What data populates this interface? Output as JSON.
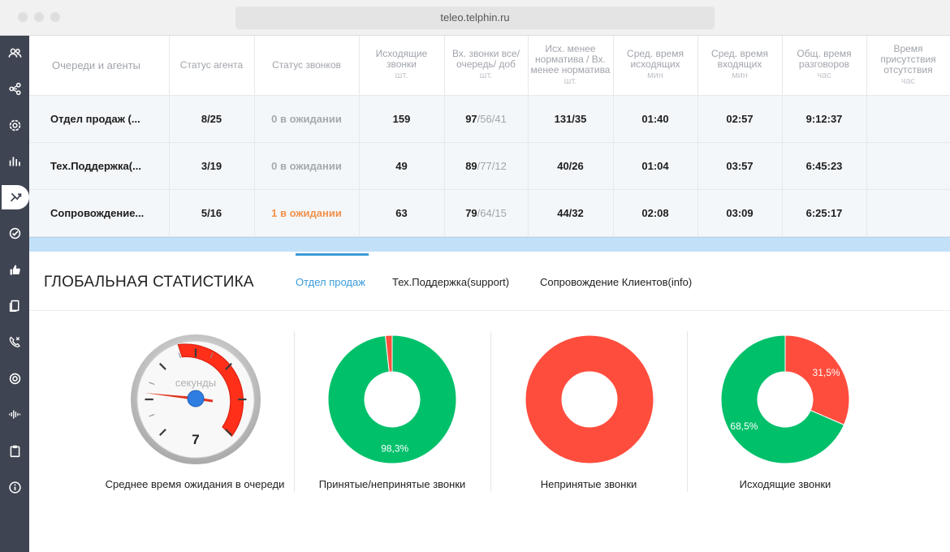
{
  "browser": {
    "url": "teleo.telphin.ru"
  },
  "sidebar": {
    "items": [
      {
        "icon": "users-icon"
      },
      {
        "icon": "network-icon"
      },
      {
        "icon": "settings-icon"
      },
      {
        "icon": "bar-chart-icon"
      },
      {
        "icon": "transfer-icon",
        "active": true
      },
      {
        "icon": "check-icon"
      },
      {
        "icon": "thumbs-up-icon"
      },
      {
        "icon": "documents-icon"
      },
      {
        "icon": "missed-call-icon"
      },
      {
        "icon": "target-icon"
      },
      {
        "icon": "sound-wave-icon"
      },
      {
        "icon": "clipboard-icon"
      },
      {
        "icon": "info-icon"
      }
    ]
  },
  "table": {
    "columns": [
      {
        "label": "Очереди и агенты",
        "unit": ""
      },
      {
        "label": "Статус агента",
        "unit": ""
      },
      {
        "label": "Статус звонков",
        "unit": ""
      },
      {
        "label": "Исходящие звонки",
        "unit": "шт."
      },
      {
        "label": "Вх. звонки все/ очередь/ доб",
        "unit": "шт."
      },
      {
        "label": "Исх. менее норматива / Вх. менее норматива",
        "unit": "шт."
      },
      {
        "label": "Сред. время исходящих",
        "unit": "мин"
      },
      {
        "label": "Сред. время входящих",
        "unit": "мин"
      },
      {
        "label": "Общ. время разговоров",
        "unit": "час"
      },
      {
        "label": "Время присутствия отсутствия",
        "unit": "час"
      }
    ],
    "rows": [
      {
        "queue": "Отдел продаж (...",
        "agent_status": "8/25",
        "call_status": "0 в ожидании",
        "waiting": false,
        "outgoing": "159",
        "in_all": "97",
        "in_queue": "/56",
        "in_ext": "/41",
        "below_norm": "131/35",
        "avg_out": "01:40",
        "avg_in": "02:57",
        "total_talk": "9:12:37",
        "presence": ""
      },
      {
        "queue": "Тех.Поддержка(...",
        "agent_status": "3/19",
        "call_status": "0 в ожидании",
        "waiting": false,
        "outgoing": "49",
        "in_all": "89",
        "in_queue": "/77",
        "in_ext": "/12",
        "below_norm": "40/26",
        "avg_out": "01:04",
        "avg_in": "03:57",
        "total_talk": "6:45:23",
        "presence": ""
      },
      {
        "queue": "Сопровождение...",
        "agent_status": "5/16",
        "call_status": "1 в ожидании",
        "waiting": true,
        "outgoing": "63",
        "in_all": "79",
        "in_queue": "/64",
        "in_ext": "/15",
        "below_norm": "44/32",
        "avg_out": "02:08",
        "avg_in": "03:09",
        "total_talk": "6:25:17",
        "presence": ""
      }
    ]
  },
  "global_stats": {
    "title": "ГЛОБАЛЬНАЯ СТАТИСТИКА",
    "tabs": [
      {
        "label": "Отдел продаж",
        "active": true
      },
      {
        "label": "Тех.Поддержка(support)",
        "active": false
      },
      {
        "label": "Сопровождение Клиентов(info)",
        "active": false
      }
    ],
    "gauge": {
      "unit_label": "секунды",
      "value_text": "7",
      "label": "Среднее время ожидания в очереди"
    },
    "donuts": [
      {
        "label": "Принятые/непринятые звонки",
        "slices": [
          {
            "value": 98.3,
            "text": "98,3%",
            "color": "#00c06a"
          },
          {
            "value": 1.7,
            "text": "",
            "color": "#ff4d3d"
          }
        ]
      },
      {
        "label": "Непринятые звонки",
        "slices": [
          {
            "value": 100,
            "text": "",
            "color": "#ff4d3d"
          }
        ]
      },
      {
        "label": "Исходящие звонки",
        "slices": [
          {
            "value": 31.5,
            "text": "31,5%",
            "color": "#ff4d3d"
          },
          {
            "value": 68.5,
            "text": "68,5%",
            "color": "#00c06a"
          }
        ]
      }
    ]
  },
  "colors": {
    "accent": "#3a9bd9",
    "green": "#00c06a",
    "red": "#ff4d3d",
    "warning": "#f2914a",
    "sidebar": "#3f4452"
  }
}
